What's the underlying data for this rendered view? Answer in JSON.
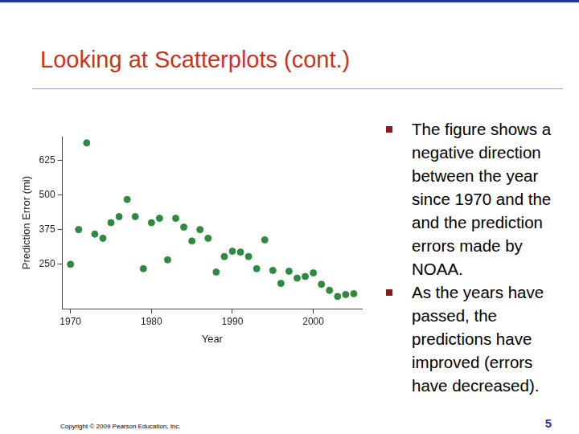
{
  "slide": {
    "title": "Looking at Scatterplots (cont.)",
    "bullets": [
      "The figure shows a negative direction between the year since 1970 and the and the prediction errors made by NOAA.",
      "As the years have passed, the predictions have improved (errors have decreased)."
    ],
    "footer": "Copyright © 2009 Pearson Education, Inc.",
    "page_number": 5
  },
  "chart_data": {
    "type": "scatter",
    "x_label": "Year",
    "y_label": "Prediction Error (mi)",
    "x": [
      1970,
      1971,
      1972,
      1973,
      1974,
      1975,
      1976,
      1977,
      1978,
      1979,
      1980,
      1981,
      1982,
      1983,
      1984,
      1985,
      1986,
      1987,
      1988,
      1989,
      1990,
      1991,
      1992,
      1993,
      1994,
      1995,
      1996,
      1997,
      1998,
      1999,
      2000,
      2001,
      2002,
      2003,
      2004,
      2005
    ],
    "values": [
      250,
      375,
      688,
      359,
      344,
      400,
      422,
      484,
      422,
      234,
      400,
      416,
      266,
      416,
      384,
      334,
      375,
      344,
      222,
      278,
      297,
      294,
      278,
      234,
      338,
      228,
      181,
      225,
      200,
      206,
      219,
      178,
      156,
      134,
      141,
      144
    ],
    "color": "#2e8b3e",
    "marker": "circle",
    "xlim": [
      1969,
      2006
    ],
    "ylim": [
      90,
      710
    ],
    "xticks": [
      1970,
      1980,
      1990,
      2000
    ],
    "yticks": [
      250,
      375,
      500,
      625
    ],
    "grid": false
  }
}
